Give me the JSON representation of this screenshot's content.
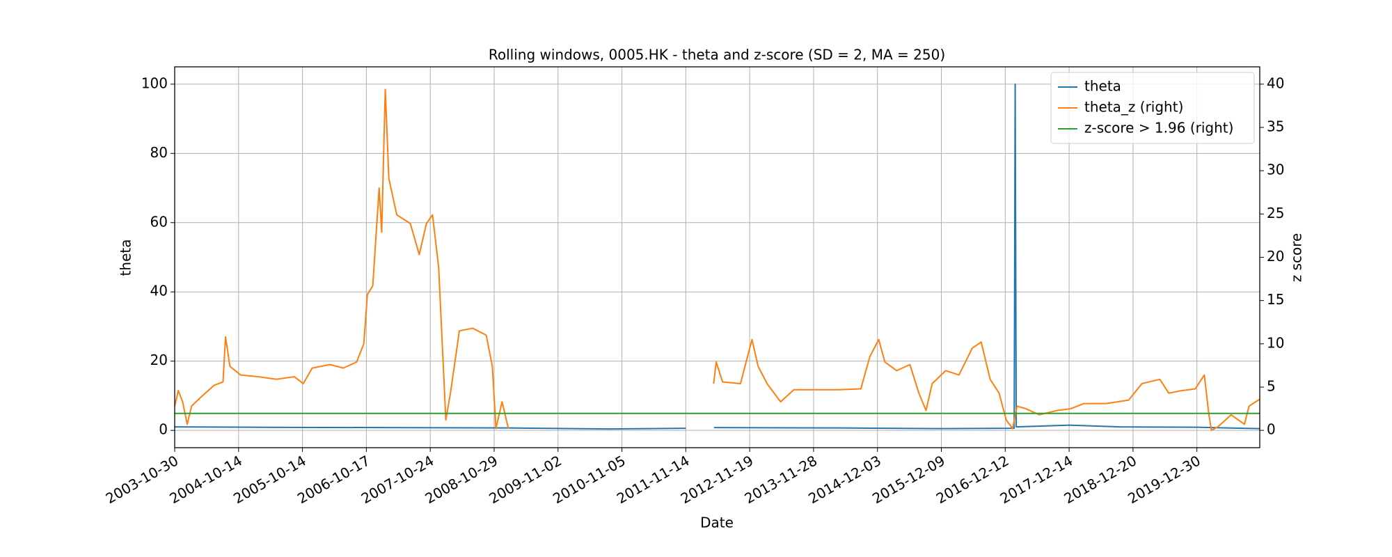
{
  "chart_data": {
    "type": "line",
    "title": "Rolling windows, 0005.HK - theta and z-score (SD = 2, MA = 250)",
    "x_label": "Date",
    "y_label": "theta",
    "y2_label": "z score",
    "xlim": [
      0,
      4246
    ],
    "ylim": [
      -5,
      105
    ],
    "y2lim": [
      -2,
      42
    ],
    "xticks": [
      {
        "value": 0,
        "label": "2003-10-30"
      },
      {
        "value": 250,
        "label": "2004-10-14"
      },
      {
        "value": 500,
        "label": "2005-10-14"
      },
      {
        "value": 750,
        "label": "2006-10-17"
      },
      {
        "value": 1000,
        "label": "2007-10-24"
      },
      {
        "value": 1250,
        "label": "2008-10-29"
      },
      {
        "value": 1500,
        "label": "2009-11-02"
      },
      {
        "value": 1750,
        "label": "2010-11-05"
      },
      {
        "value": 2000,
        "label": "2011-11-14"
      },
      {
        "value": 2250,
        "label": "2012-11-19"
      },
      {
        "value": 2500,
        "label": "2013-11-28"
      },
      {
        "value": 2750,
        "label": "2014-12-03"
      },
      {
        "value": 3000,
        "label": "2015-12-09"
      },
      {
        "value": 3250,
        "label": "2016-12-12"
      },
      {
        "value": 3500,
        "label": "2017-12-14"
      },
      {
        "value": 3750,
        "label": "2018-12-20"
      },
      {
        "value": 4000,
        "label": "2019-12-30"
      }
    ],
    "yticks": [
      0,
      20,
      40,
      60,
      80,
      100
    ],
    "y2ticks": [
      0,
      5,
      10,
      15,
      20,
      25,
      30,
      35,
      40
    ],
    "grid": true,
    "legend": "upper right",
    "series": [
      {
        "name": "theta",
        "color": "#1f77b4",
        "axis": "y",
        "x": [
          0,
          300,
          800,
          1300,
          1700,
          2000,
          2090,
          2110,
          2600,
          3000,
          3285,
          3289,
          3293,
          3500,
          3700,
          4000,
          4246
        ],
        "values": [
          1.0,
          0.9,
          0.8,
          0.7,
          0.4,
          0.6,
          null,
          0.8,
          0.7,
          0.5,
          0.6,
          100,
          1.0,
          1.5,
          1.0,
          0.9,
          0.5
        ]
      },
      {
        "name": "theta_z (right)",
        "color": "#ff7f0e",
        "axis": "y2",
        "x": [
          0,
          14,
          31,
          49,
          66,
          101,
          154,
          189,
          199,
          216,
          258,
          328,
          398,
          468,
          503,
          538,
          608,
          660,
          712,
          740,
          754,
          775,
          800,
          810,
          824,
          838,
          869,
          922,
          957,
          985,
          1009,
          1033,
          1061,
          1079,
          1114,
          1166,
          1219,
          1243,
          1257,
          1281,
          1306,
          1700,
          2109,
          2119,
          2144,
          2214,
          2259,
          2283,
          2318,
          2371,
          2423,
          2528,
          2598,
          2685,
          2720,
          2755,
          2779,
          2825,
          2877,
          2912,
          2940,
          2964,
          3017,
          3069,
          3121,
          3156,
          3191,
          3226,
          3254,
          3279,
          3296,
          3331,
          3383,
          3453,
          3506,
          3558,
          3645,
          3733,
          3785,
          3855,
          3890,
          3942,
          3994,
          4029,
          4047,
          4057,
          4082,
          4134,
          4186,
          4204,
          4246
        ],
        "values": [
          2.8,
          4.6,
          3.3,
          0.7,
          2.8,
          3.8,
          5.2,
          5.6,
          10.8,
          7.4,
          6.4,
          6.2,
          5.9,
          6.2,
          5.4,
          7.2,
          7.6,
          7.2,
          7.9,
          10,
          15.7,
          16.7,
          28,
          22.9,
          39.4,
          29.1,
          24.9,
          23.9,
          20.3,
          23.9,
          24.9,
          18.8,
          1.2,
          4.3,
          11.5,
          11.8,
          11,
          7.4,
          0.2,
          3.3,
          0.2,
          null,
          5.4,
          7.9,
          5.6,
          5.4,
          10.5,
          7.4,
          5.4,
          3.3,
          4.7,
          4.7,
          4.7,
          4.8,
          8.5,
          10.5,
          7.9,
          6.9,
          7.6,
          4.3,
          2.3,
          5.4,
          6.9,
          6.4,
          9.5,
          10.2,
          5.9,
          4.3,
          1.2,
          0.2,
          2.8,
          2.5,
          1.8,
          2.3,
          2.5,
          3.1,
          3.1,
          3.5,
          5.4,
          5.9,
          4.3,
          4.6,
          4.8,
          6.4,
          1.8,
          0,
          0.4,
          1.8,
          0.7,
          2.8,
          3.6
        ]
      },
      {
        "name": "z-score > 1.96 (right)",
        "color": "#2ca02c",
        "axis": "y2",
        "x": [
          0,
          4246
        ],
        "values": [
          1.96,
          1.96
        ]
      }
    ]
  }
}
